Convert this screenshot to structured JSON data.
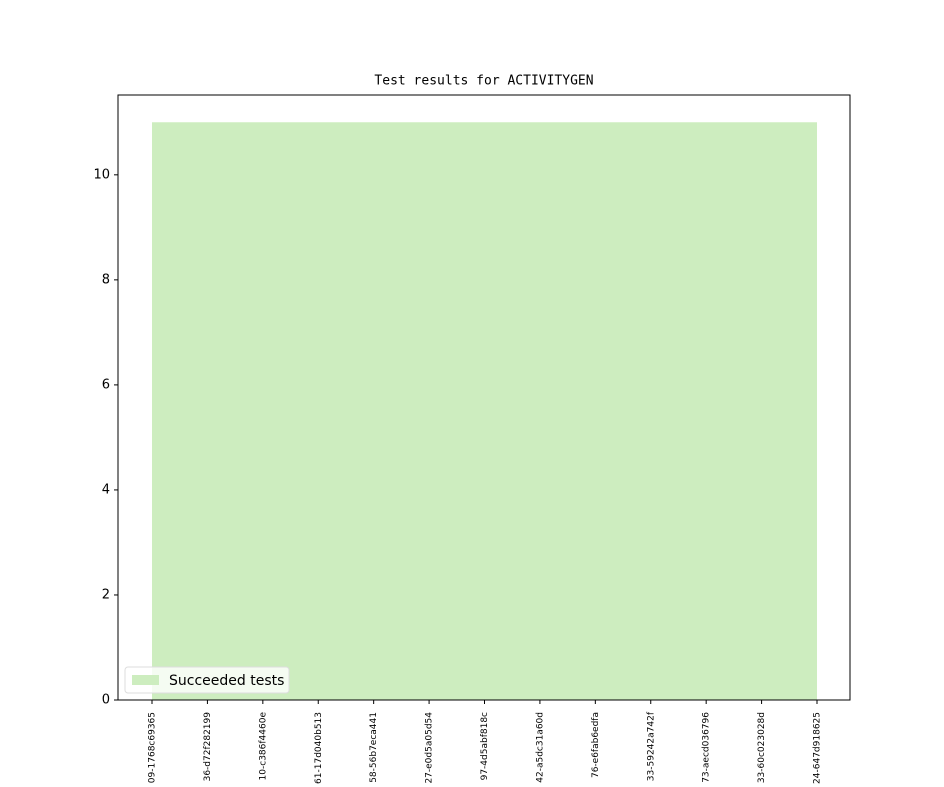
{
  "chart_data": {
    "type": "area",
    "title": "Test results for ACTIVITYGEN",
    "categories": [
      "09-1768c69365",
      "36-d72f282199",
      "10-c386f4460e",
      "61-17d040b513",
      "58-56b7eca441",
      "27-e0d5a05d54",
      "97-4d5abf818c",
      "42-a5dc31a60d",
      "76-e6fab6edfa",
      "33-59242a742f",
      "73-aecd036796",
      "33-60c023028d",
      "24-647d918625"
    ],
    "series": [
      {
        "name": "Succeeded tests",
        "color": "#cdedbf",
        "values": [
          11,
          11,
          11,
          11,
          11,
          11,
          11,
          11,
          11,
          11,
          11,
          11,
          11
        ]
      }
    ],
    "ylim": [
      0,
      11.52
    ],
    "yticks": [
      0,
      2,
      4,
      6,
      8,
      10
    ],
    "legend": "lower left"
  }
}
